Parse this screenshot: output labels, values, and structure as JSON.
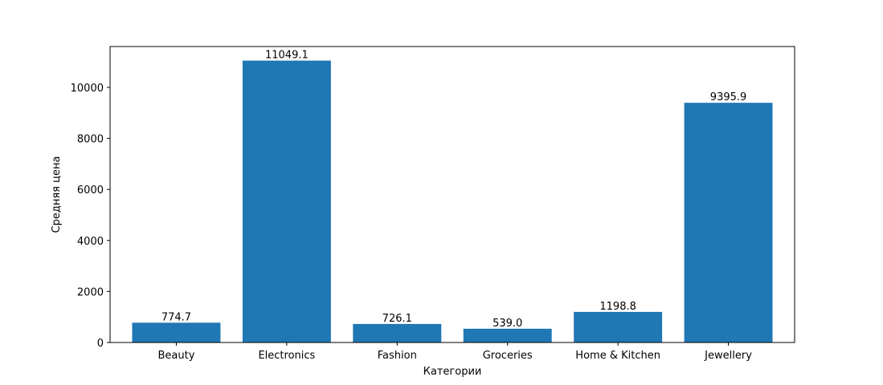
{
  "chart_data": {
    "type": "bar",
    "title": "",
    "xlabel": "Категории",
    "ylabel": "Средняя цена",
    "categories": [
      "Beauty",
      "Electronics",
      "Fashion",
      "Groceries",
      "Home & Kitchen",
      "Jewellery"
    ],
    "values": [
      774.7,
      11049.1,
      726.1,
      539.0,
      1198.8,
      9395.9
    ],
    "value_labels": [
      "774.7",
      "11049.1",
      "726.1",
      "539.0",
      "1198.8",
      "9395.9"
    ],
    "yticks": [
      0,
      2000,
      4000,
      6000,
      8000,
      10000
    ],
    "ytick_labels": [
      "0",
      "2000",
      "4000",
      "6000",
      "8000",
      "10000"
    ],
    "ylim": [
      0,
      11601.6
    ],
    "grid": false,
    "bar_color": "#1f77b4"
  }
}
